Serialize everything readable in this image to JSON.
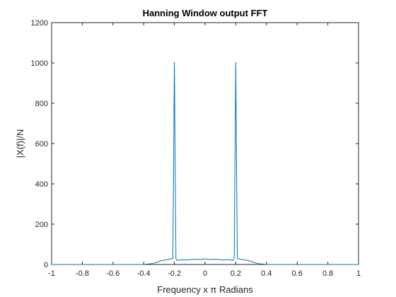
{
  "chart_data": {
    "type": "line",
    "title": "Hanning Window output FFT",
    "xlabel": "Frequency x π Radians",
    "ylabel": "|X(f)|/N",
    "xlim": [
      -1,
      1
    ],
    "ylim": [
      0,
      1200
    ],
    "xticks": [
      -1,
      -0.8,
      -0.6,
      -0.4,
      -0.2,
      0,
      0.2,
      0.4,
      0.6,
      0.8,
      1
    ],
    "xtick_labels": [
      "-1",
      "-0.8",
      "-0.6",
      "-0.4",
      "-0.2",
      "0",
      "0.2",
      "0.4",
      "0.6",
      "0.8",
      "1"
    ],
    "yticks": [
      0,
      200,
      400,
      600,
      800,
      1000,
      1200
    ],
    "ytick_labels": [
      "0",
      "200",
      "400",
      "600",
      "800",
      "1000",
      "1200"
    ],
    "grid": false,
    "line_color": "#0072bd",
    "series": [
      {
        "x": [
          -1,
          -0.4,
          -0.34,
          -0.3,
          -0.28,
          -0.26,
          -0.24,
          -0.22,
          -0.21,
          -0.2,
          -0.19,
          -0.18,
          -0.15,
          -0.12,
          -0.09,
          -0.06,
          -0.03,
          0,
          0.03,
          0.06,
          0.09,
          0.12,
          0.15,
          0.18,
          0.19,
          0.2,
          0.21,
          0.22,
          0.24,
          0.26,
          0.28,
          0.3,
          0.34,
          0.4,
          1
        ],
        "y": [
          0,
          0,
          5,
          15,
          20,
          22,
          25,
          28,
          30,
          1005,
          30,
          20,
          24,
          22,
          25,
          26,
          24,
          28,
          24,
          26,
          25,
          22,
          24,
          20,
          30,
          1005,
          30,
          28,
          25,
          22,
          20,
          15,
          5,
          0,
          0
        ]
      }
    ]
  }
}
